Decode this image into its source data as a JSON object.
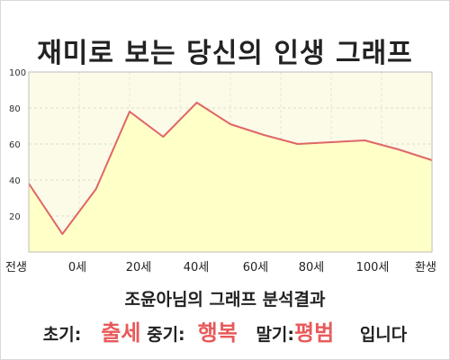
{
  "header": {
    "title": "재미로 보는 당신의 인생 그래프"
  },
  "chart_data": {
    "type": "area",
    "title": "재미로 보는 당신의 인생 그래프",
    "xlabel": "",
    "ylabel": "",
    "ylim": [
      0,
      100
    ],
    "y_ticks": [
      20,
      40,
      60,
      80,
      100
    ],
    "x_ticks": [
      "전생",
      "0세",
      "20세",
      "40세",
      "60세",
      "80세",
      "100세",
      "환생"
    ],
    "grid": true,
    "series": [
      {
        "values": [
          38,
          10,
          35,
          78,
          64,
          83,
          71,
          65,
          60,
          61,
          62,
          57,
          51
        ]
      }
    ],
    "colors": {
      "line": "#e06666",
      "fill": "#ffffc8",
      "plot_bg": "#fbfbe8"
    }
  },
  "result": {
    "title": "조윤아님의 그래프 분석결과",
    "early_label": "초기:",
    "early_value": "출세",
    "mid_label": "중기:",
    "mid_value": "행복",
    "late_label": "말기:",
    "late_value": "평범",
    "suffix": "입니다"
  }
}
